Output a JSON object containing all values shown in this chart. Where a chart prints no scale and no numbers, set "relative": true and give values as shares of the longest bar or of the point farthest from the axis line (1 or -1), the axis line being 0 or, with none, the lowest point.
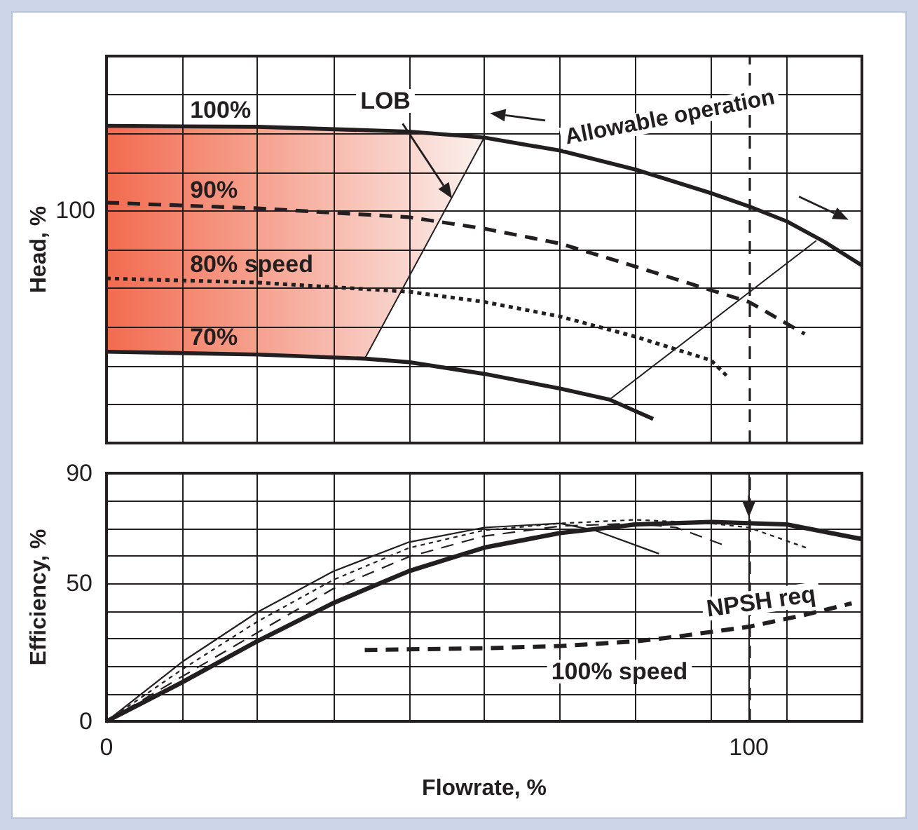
{
  "chart_data": [
    {
      "type": "line",
      "relative": true,
      "ylabel": "Head, %",
      "xlim": [
        0,
        117.6
      ],
      "xticks": [
        {
          "value": 11.8,
          "label": null
        },
        {
          "value": 23.5,
          "label": null
        },
        {
          "value": 35.3,
          "label": null
        },
        {
          "value": 47.1,
          "label": null
        },
        {
          "value": 58.8,
          "label": null
        },
        {
          "value": 70.6,
          "label": null
        },
        {
          "value": 82.4,
          "label": null
        },
        {
          "value": 94.1,
          "label": null
        },
        {
          "value": 105.9,
          "label": null
        }
      ],
      "tick_labels": false,
      "grid": true,
      "legend": false,
      "series": [
        {
          "name": "100%",
          "color": "#231f20",
          "line_style": "solid",
          "x": [
            0,
            23.5,
            47.1,
            58.8,
            70.6,
            82.4,
            94.1,
            100,
            105.9,
            111.8,
            117.6
          ],
          "values": [
            1,
            0.997,
            0.982,
            0.963,
            0.922,
            0.862,
            0.788,
            0.746,
            0.699,
            0.634,
            0.56
          ]
        },
        {
          "name": "90%",
          "color": "#231f20",
          "line_style": "dashed",
          "x": [
            0,
            23.5,
            47.1,
            58.8,
            70.6,
            82.4,
            94.1,
            100,
            108.7
          ],
          "values": [
            0.758,
            0.74,
            0.712,
            0.676,
            0.629,
            0.556,
            0.482,
            0.445,
            0.344
          ]
        },
        {
          "name": "80% speed",
          "color": "#231f20",
          "line_style": "dotted",
          "x": [
            0,
            23.5,
            47.1,
            58.8,
            70.6,
            82.4,
            94.1,
            96.9
          ],
          "values": [
            0.519,
            0.506,
            0.477,
            0.445,
            0.399,
            0.335,
            0.261,
            0.205
          ]
        },
        {
          "name": "70%",
          "color": "#231f20",
          "line_style": "solid",
          "x": [
            0,
            23.5,
            40.2,
            47.1,
            58.8,
            70.6,
            78.3,
            85.1
          ],
          "values": [
            0.288,
            0.279,
            0.266,
            0.255,
            0.218,
            0.172,
            0.137,
            0.076
          ]
        },
        {
          "color": "#231f20",
          "line_style": "solid",
          "x": [
            40.2,
            58.8
          ],
          "values": [
            0.266,
            0.963
          ]
        },
        {
          "color": "#231f20",
          "line_style": "solid",
          "x": [
            78.3,
            110.5
          ],
          "values": [
            0.137,
            0.638
          ]
        }
      ],
      "bands": [
        {
          "axis": "x",
          "from": 0,
          "to": 58.8,
          "color": "#f26b4f"
        }
      ],
      "ref_lines": [
        {
          "axis": "x",
          "value": 100,
          "color": "#231f20",
          "line_style": "dashed"
        }
      ],
      "annotations": [
        "LOB",
        "Allowable operation",
        "100"
      ]
    },
    {
      "type": "line",
      "xlabel": "Flowrate, %",
      "ylabel": "Efficiency, %",
      "xlim": [
        0,
        117.6
      ],
      "xticks": [
        0,
        {
          "value": 11.8,
          "label": null
        },
        {
          "value": 23.5,
          "label": null
        },
        {
          "value": 35.3,
          "label": null
        },
        {
          "value": 47.1,
          "label": null
        },
        {
          "value": 58.8,
          "label": null
        },
        {
          "value": 70.6,
          "label": null
        },
        {
          "value": 82.4,
          "label": null
        },
        {
          "value": 94.1,
          "label": null
        },
        100,
        {
          "value": 105.9,
          "label": null
        }
      ],
      "ylim": [
        0,
        90
      ],
      "yticks": [
        0,
        {
          "value": 10,
          "label": null
        },
        {
          "value": 20,
          "label": null
        },
        {
          "value": 30,
          "label": null
        },
        {
          "value": 40,
          "label": null
        },
        50,
        {
          "value": 60,
          "label": null
        },
        {
          "value": 70,
          "label": null
        },
        {
          "value": 80,
          "label": null
        },
        90
      ],
      "grid": true,
      "legend": false,
      "series": [
        {
          "color": "#231f20",
          "line_style": "solid",
          "x": [
            0,
            11.8,
            23.5,
            35.3,
            47.1,
            58.8,
            70.6,
            82.4,
            94.1,
            105.9,
            117.6
          ],
          "values": [
            0,
            14.2,
            29.1,
            42.9,
            54.5,
            63,
            68.3,
            71.4,
            72.3,
            71.4,
            66.1
          ]
        },
        {
          "color": "#231f20",
          "line_style": "dotted",
          "x": [
            0,
            11.8,
            23.5,
            35.3,
            47.1,
            58.8,
            70.6,
            82.4,
            94.1,
            100,
            109
          ],
          "values": [
            0,
            18.9,
            36.2,
            51.3,
            62.9,
            69.3,
            71.8,
            73.1,
            71.8,
            70.3,
            62.9
          ]
        },
        {
          "color": "#231f20",
          "line_style": "dashed",
          "x": [
            0,
            11.8,
            23.5,
            35.3,
            47.1,
            58.8,
            70.6,
            82.4,
            88.7,
            96
          ],
          "values": [
            0,
            16.3,
            32.2,
            48.1,
            59.7,
            67.2,
            70.8,
            71.8,
            70.3,
            64
          ]
        },
        {
          "color": "#231f20",
          "line_style": "solid",
          "x": [
            0,
            11.8,
            23.5,
            35.3,
            47.1,
            58.8,
            70.6,
            76,
            86
          ],
          "values": [
            0,
            21.6,
            39.6,
            54.4,
            65,
            70.3,
            71.8,
            69.3,
            60.8
          ]
        },
        {
          "color": "#231f20",
          "line_style": "dashed",
          "x": [
            40.2,
            58.8,
            70.6,
            82.4,
            88.7,
            100,
            108.7,
            116
          ],
          "values": [
            25.9,
            26.5,
            27.3,
            29,
            30.7,
            34.3,
            38.6,
            42.8
          ]
        }
      ],
      "ref_lines": [
        {
          "axis": "x",
          "value": 100,
          "color": "#231f20",
          "line_style": "dashed"
        }
      ],
      "annotations": [
        "NPSH req",
        "100% speed"
      ]
    }
  ]
}
